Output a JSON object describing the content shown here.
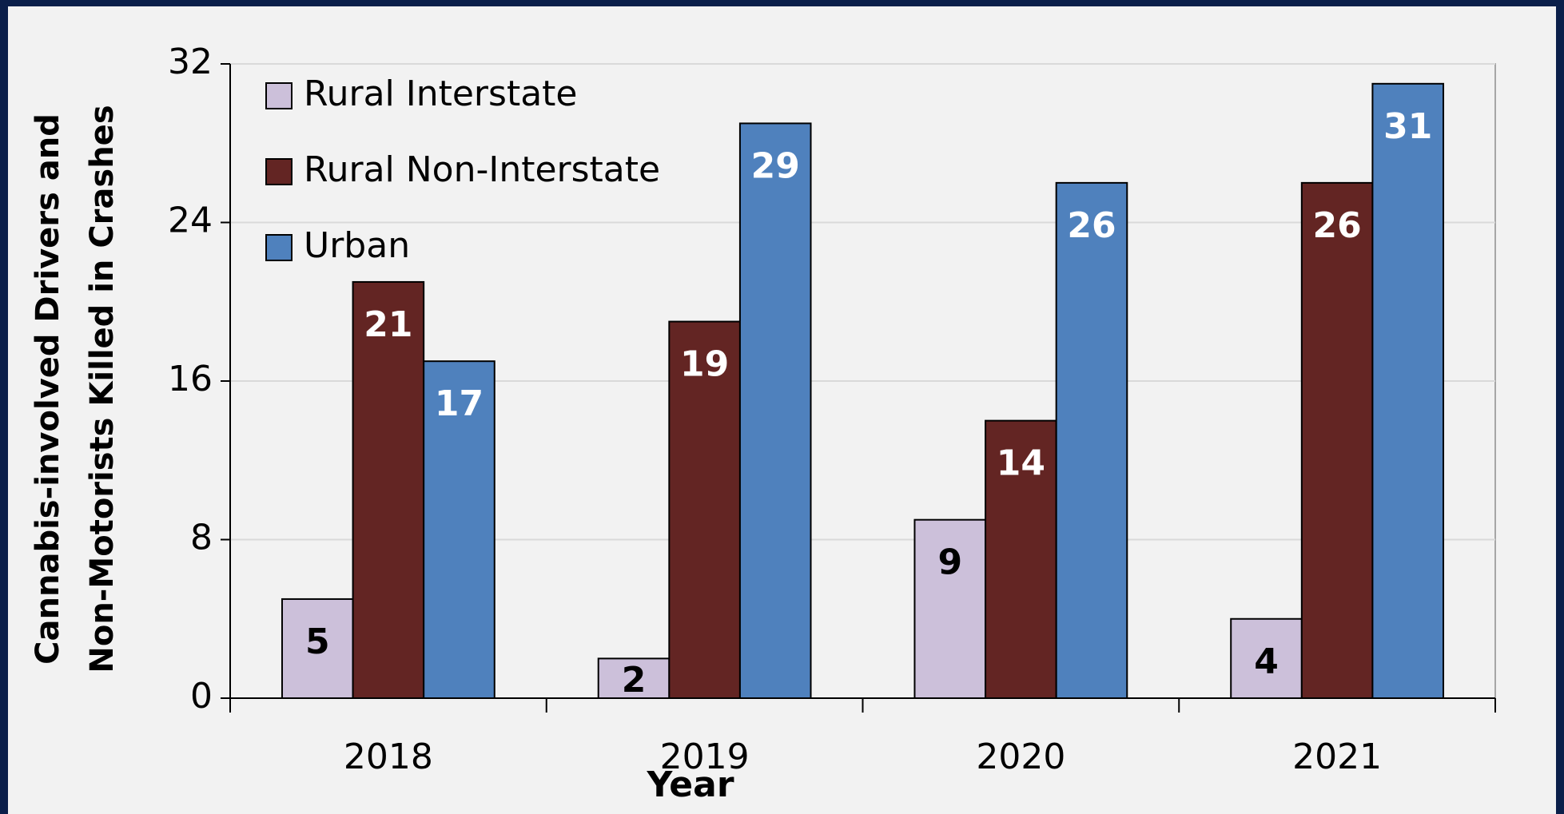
{
  "chart_data": {
    "type": "bar",
    "ylabel": [
      "Cannabis-involved Drivers and",
      "Non-Motorists Killed in Crashes"
    ],
    "xlabel": "Year",
    "categories": [
      "2018",
      "2019",
      "2020",
      "2021"
    ],
    "series": [
      {
        "name": "Rural Interstate",
        "color": "#ccc0da",
        "label_color": "#000000",
        "values": [
          5,
          2,
          9,
          4
        ]
      },
      {
        "name": "Rural Non-Interstate",
        "color": "#632523",
        "label_color": "#ffffff",
        "values": [
          21,
          19,
          14,
          26
        ]
      },
      {
        "name": "Urban",
        "color": "#4f81bd",
        "label_color": "#ffffff",
        "values": [
          17,
          29,
          26,
          31
        ]
      }
    ],
    "ylim": [
      0,
      32
    ],
    "yticks": [
      0,
      8,
      16,
      24,
      32
    ],
    "grid": true,
    "legend": "upper left"
  }
}
